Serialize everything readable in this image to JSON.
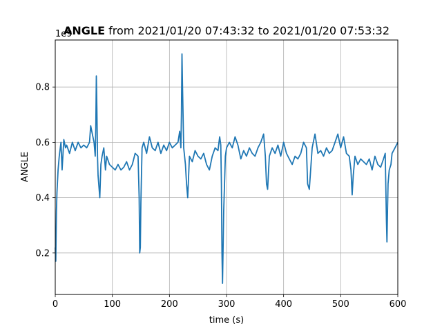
{
  "chart_data": {
    "type": "line",
    "title_bold": "ANGLE",
    "title_rest": " from 2021/01/20 07:43:32 to 2021/01/20 07:53:32",
    "xlabel": "time (s)",
    "ylabel": "ANGLE",
    "offset_label": "1e9",
    "xlim": [
      0,
      600
    ],
    "ylim": [
      0.05,
      0.97
    ],
    "xticks": [
      0,
      100,
      200,
      300,
      400,
      500,
      600
    ],
    "xtick_labels": [
      "0",
      "100",
      "200",
      "300",
      "400",
      "500",
      "600"
    ],
    "yticks": [
      0.2,
      0.4,
      0.6,
      0.8
    ],
    "ytick_labels": [
      "0.2",
      "0.4",
      "0.6",
      "0.8"
    ],
    "grid": true,
    "line_color": "#1f77b4",
    "series": [
      {
        "x": [
          0,
          1,
          2,
          3,
          5,
          7,
          10,
          12,
          15,
          18,
          20,
          25,
          30,
          35,
          40,
          45,
          50,
          55,
          60,
          62,
          65,
          68,
          70,
          71,
          72,
          73,
          74,
          75,
          78,
          80,
          82,
          85,
          88,
          90,
          95,
          100,
          105,
          110,
          115,
          120,
          125,
          130,
          135,
          140,
          145,
          147,
          148,
          149,
          150,
          152,
          155,
          160,
          165,
          170,
          175,
          180,
          185,
          190,
          195,
          200,
          205,
          210,
          215,
          218,
          220,
          221,
          222,
          223,
          225,
          228,
          230,
          232,
          235,
          240,
          245,
          250,
          255,
          260,
          265,
          270,
          275,
          280,
          285,
          288,
          290,
          291,
          292,
          293,
          295,
          298,
          300,
          305,
          310,
          315,
          320,
          325,
          330,
          335,
          340,
          345,
          350,
          355,
          360,
          365,
          368,
          370,
          372,
          375,
          380,
          385,
          390,
          395,
          400,
          405,
          410,
          415,
          420,
          425,
          430,
          435,
          440,
          442,
          445,
          450,
          455,
          460,
          465,
          470,
          475,
          480,
          485,
          490,
          495,
          500,
          505,
          510,
          515,
          518,
          520,
          522,
          525,
          530,
          535,
          540,
          545,
          550,
          555,
          560,
          565,
          570,
          575,
          578,
          580,
          581,
          582,
          583,
          585,
          588,
          590,
          595,
          600
        ],
        "y": [
          0.22,
          0.17,
          0.35,
          0.42,
          0.5,
          0.55,
          0.6,
          0.5,
          0.61,
          0.58,
          0.59,
          0.56,
          0.6,
          0.57,
          0.6,
          0.58,
          0.59,
          0.58,
          0.6,
          0.66,
          0.63,
          0.6,
          0.55,
          0.65,
          0.84,
          0.72,
          0.55,
          0.48,
          0.4,
          0.52,
          0.55,
          0.58,
          0.5,
          0.55,
          0.52,
          0.51,
          0.5,
          0.52,
          0.5,
          0.51,
          0.53,
          0.5,
          0.52,
          0.56,
          0.55,
          0.4,
          0.2,
          0.22,
          0.38,
          0.58,
          0.6,
          0.56,
          0.62,
          0.58,
          0.57,
          0.6,
          0.56,
          0.59,
          0.57,
          0.6,
          0.58,
          0.59,
          0.6,
          0.64,
          0.58,
          0.7,
          0.92,
          0.8,
          0.58,
          0.52,
          0.45,
          0.4,
          0.55,
          0.53,
          0.57,
          0.55,
          0.54,
          0.56,
          0.52,
          0.5,
          0.55,
          0.58,
          0.57,
          0.62,
          0.59,
          0.45,
          0.2,
          0.09,
          0.35,
          0.55,
          0.58,
          0.6,
          0.58,
          0.62,
          0.59,
          0.54,
          0.57,
          0.55,
          0.58,
          0.56,
          0.55,
          0.58,
          0.6,
          0.63,
          0.55,
          0.45,
          0.43,
          0.55,
          0.58,
          0.56,
          0.59,
          0.55,
          0.6,
          0.56,
          0.54,
          0.52,
          0.55,
          0.54,
          0.56,
          0.6,
          0.58,
          0.45,
          0.43,
          0.58,
          0.63,
          0.56,
          0.57,
          0.55,
          0.58,
          0.56,
          0.57,
          0.6,
          0.63,
          0.58,
          0.62,
          0.56,
          0.55,
          0.5,
          0.41,
          0.48,
          0.55,
          0.52,
          0.54,
          0.53,
          0.52,
          0.54,
          0.5,
          0.55,
          0.52,
          0.51,
          0.54,
          0.56,
          0.32,
          0.24,
          0.35,
          0.45,
          0.5,
          0.52,
          0.56,
          0.58,
          0.6
        ]
      }
    ]
  }
}
